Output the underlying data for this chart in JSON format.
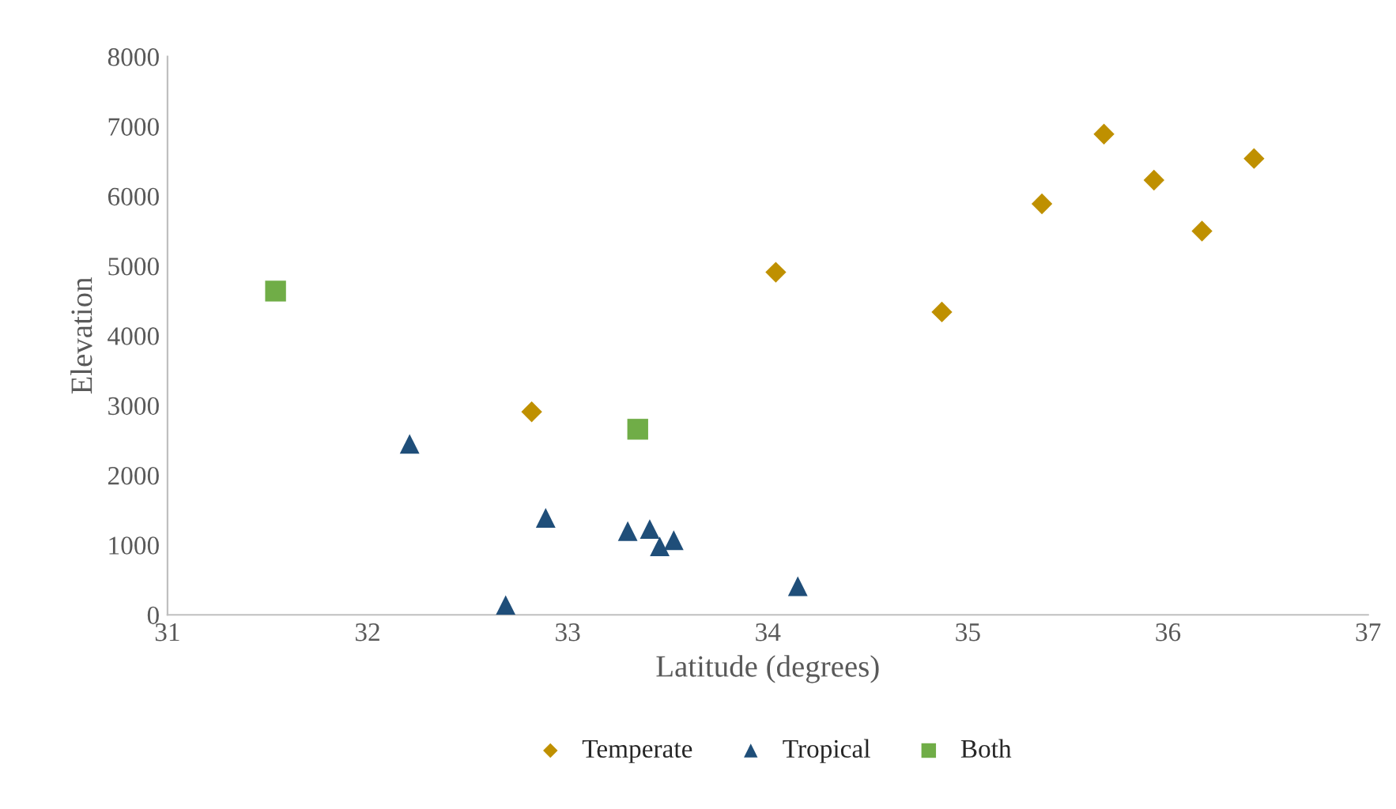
{
  "chart_data": {
    "type": "scatter",
    "xlabel": "Latitude (degrees)",
    "ylabel": "Elevation",
    "xlim": [
      31,
      37
    ],
    "xticks": [
      31,
      32,
      33,
      34,
      35,
      36,
      37
    ],
    "ylim": [
      0,
      8000
    ],
    "yticks": [
      0,
      1000,
      2000,
      3000,
      4000,
      5000,
      6000,
      7000,
      8000
    ],
    "grid": false,
    "legend": "bottom",
    "series": [
      {
        "name": "Temperate",
        "color": "#bf9000",
        "marker": "diamond",
        "x": [
          32.82,
          34.04,
          34.87,
          35.37,
          35.68,
          35.93,
          36.17,
          36.43
        ],
        "values": [
          2910,
          4910,
          4340,
          5890,
          6890,
          6230,
          5500,
          6540
        ]
      },
      {
        "name": "Tropical",
        "color": "#1f4e79",
        "marker": "triangle",
        "x": [
          32.21,
          32.89,
          32.69,
          33.3,
          33.41,
          33.46,
          33.53,
          34.15
        ],
        "values": [
          2450,
          1390,
          140,
          1200,
          1230,
          980,
          1070,
          410
        ]
      },
      {
        "name": "Both",
        "color": "#70ad47",
        "marker": "square",
        "x": [
          31.54,
          33.35
        ],
        "values": [
          4640,
          2660
        ]
      }
    ]
  }
}
